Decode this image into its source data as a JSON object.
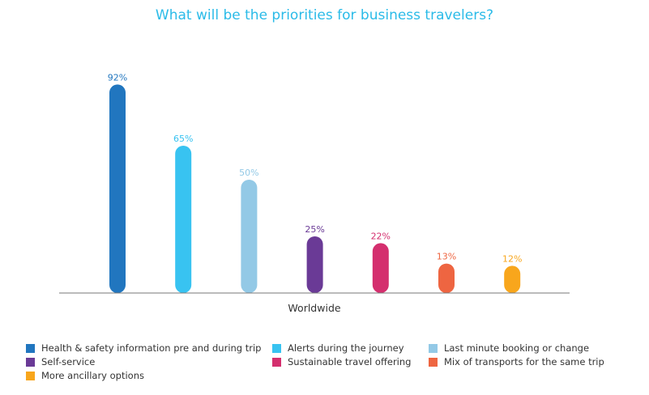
{
  "chart_data": {
    "type": "bar",
    "title": "What will be the priorities for business travelers?",
    "xlabel": "Worldwide",
    "ylabel": "",
    "ylim": [
      0,
      100
    ],
    "grid": false,
    "legend_position": "bottom",
    "categories": [
      "Worldwide"
    ],
    "series": [
      {
        "name": "Health & safety information pre and during trip",
        "values": [
          92
        ],
        "label": "92%",
        "color": "#2176bf"
      },
      {
        "name": "Alerts during the journey",
        "values": [
          65
        ],
        "label": "65%",
        "color": "#38c3f1"
      },
      {
        "name": "Last minute booking or change",
        "values": [
          50
        ],
        "label": "50%",
        "color": "#93c9e6"
      },
      {
        "name": "Self-service",
        "values": [
          25
        ],
        "label": "25%",
        "color": "#6a3a96"
      },
      {
        "name": "Sustainable travel offering",
        "values": [
          22
        ],
        "label": "22%",
        "color": "#d42f6e"
      },
      {
        "name": "Mix of transports for the same trip",
        "values": [
          13
        ],
        "label": "13%",
        "color": "#ee6541"
      },
      {
        "name": "More ancillary options",
        "values": [
          12
        ],
        "label": "12%",
        "color": "#f8a61c"
      }
    ]
  },
  "colors": {
    "title": "#2bbbe8",
    "axis": "#777777",
    "text": "#333333"
  }
}
